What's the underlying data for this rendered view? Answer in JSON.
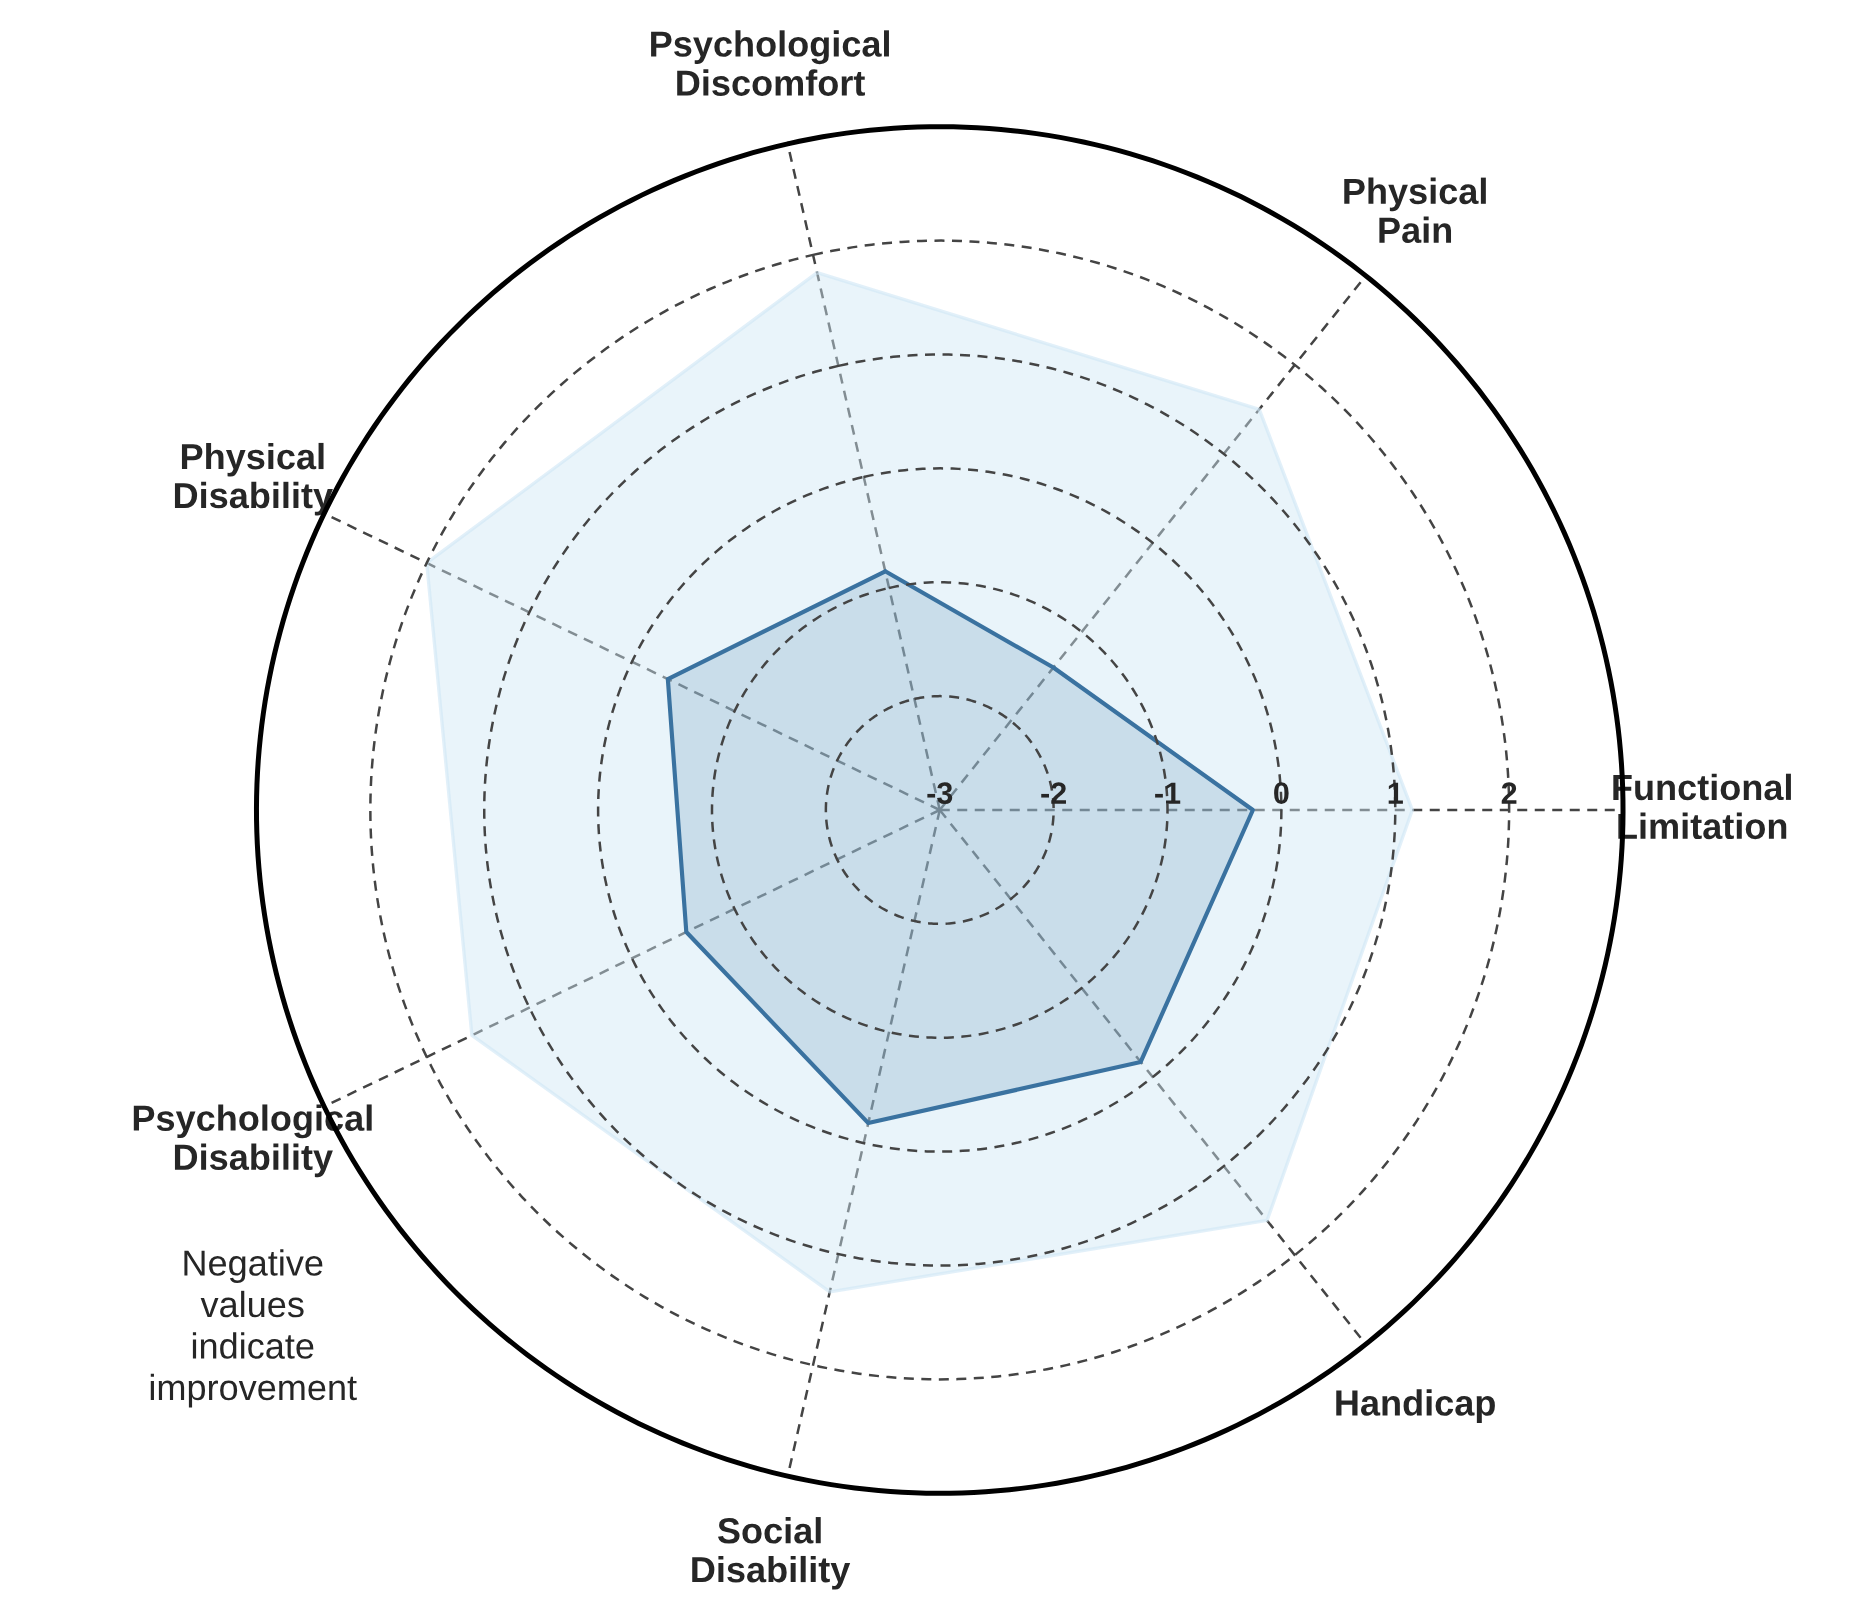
{
  "chart_data": {
    "type": "radar",
    "categories": [
      "Psychological Discomfort",
      "Physical Pain",
      "Functional Limitation",
      "Handicap",
      "Social Disability",
      "Psychological Disability",
      "Physical Disability"
    ],
    "series": [
      {
        "color": "#cfe6f5",
        "values": [
          1.84,
          1.5,
          1.15,
          1.61,
          1.34,
          1.56,
          2.0
        ]
      },
      {
        "color": "#3a72a0",
        "values": [
          -0.85,
          -1.4,
          -0.25,
          -0.17,
          -0.18,
          -0.53,
          -0.35
        ]
      }
    ],
    "ylim": [
      -3,
      3
    ],
    "yticks": [
      -3,
      -2,
      -1,
      0,
      1,
      2
    ],
    "grid": true,
    "annotations": [
      "Negative\nvalues\nindicate\nimprovement"
    ]
  }
}
